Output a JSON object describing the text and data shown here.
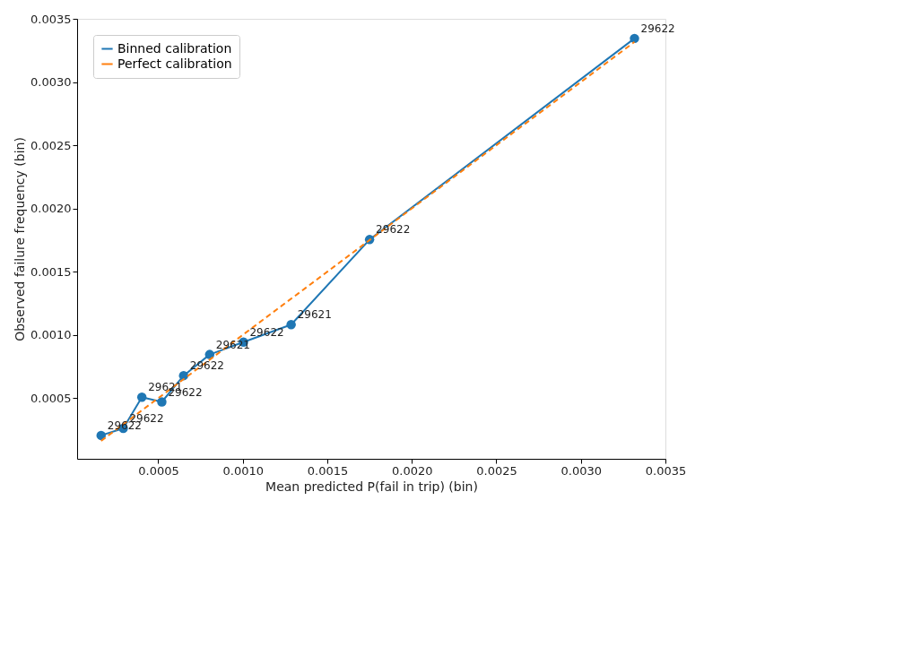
{
  "chart_data": {
    "type": "line",
    "xlabel": "Mean predicted P(fail in trip) (bin)",
    "ylabel": "Observed failure frequency (bin)",
    "xlim": [
      2e-05,
      0.0035
    ],
    "ylim": [
      2e-05,
      0.0035
    ],
    "xticks": [
      0.0005,
      {
        "value": 0.001,
        "label": "0.0010"
      },
      0.0015,
      {
        "value": 0.002,
        "label": "0.0020"
      },
      0.0025,
      {
        "value": 0.003,
        "label": "0.0030"
      },
      0.0035
    ],
    "yticks": [
      0.0005,
      {
        "value": 0.001,
        "label": "0.0010"
      },
      0.0015,
      {
        "value": 0.002,
        "label": "0.0020"
      },
      0.0025,
      {
        "value": 0.003,
        "label": "0.0030"
      },
      0.0035
    ],
    "grid": false,
    "legend": "top left",
    "series": [
      {
        "name": "Binned calibration",
        "color": "#1f77b4",
        "marker": "circle",
        "line_style": "solid",
        "x": [
          0.000162,
          0.000293,
          0.000403,
          0.000521,
          0.00065,
          0.000804,
          0.001004,
          0.001286,
          0.00175,
          0.003317
        ],
        "values": [
          0.000205,
          0.000261,
          0.000507,
          0.00047,
          0.000678,
          0.000845,
          0.000943,
          0.001081,
          0.001754,
          0.003345
        ]
      },
      {
        "name": "Perfect calibration",
        "color": "#ff7f0e",
        "marker": "none",
        "line_style": "dashed",
        "x": [
          0.000162,
          0.003317
        ],
        "values": [
          0.000162,
          0.003317
        ]
      }
    ],
    "annotations": [
      {
        "text": "29622",
        "x": 0.000162,
        "y": 0.000205
      },
      {
        "text": "29622",
        "x": 0.000293,
        "y": 0.000261
      },
      {
        "text": "29621",
        "x": 0.000403,
        "y": 0.000507
      },
      {
        "text": "29622",
        "x": 0.000521,
        "y": 0.00047
      },
      {
        "text": "29622",
        "x": 0.00065,
        "y": 0.000678
      },
      {
        "text": "29621",
        "x": 0.000804,
        "y": 0.000845
      },
      {
        "text": "29622",
        "x": 0.001004,
        "y": 0.000943
      },
      {
        "text": "29621",
        "x": 0.001286,
        "y": 0.001081
      },
      {
        "text": "29622",
        "x": 0.00175,
        "y": 0.001754
      },
      {
        "text": "29622",
        "x": 0.003317,
        "y": 0.003345
      }
    ]
  }
}
